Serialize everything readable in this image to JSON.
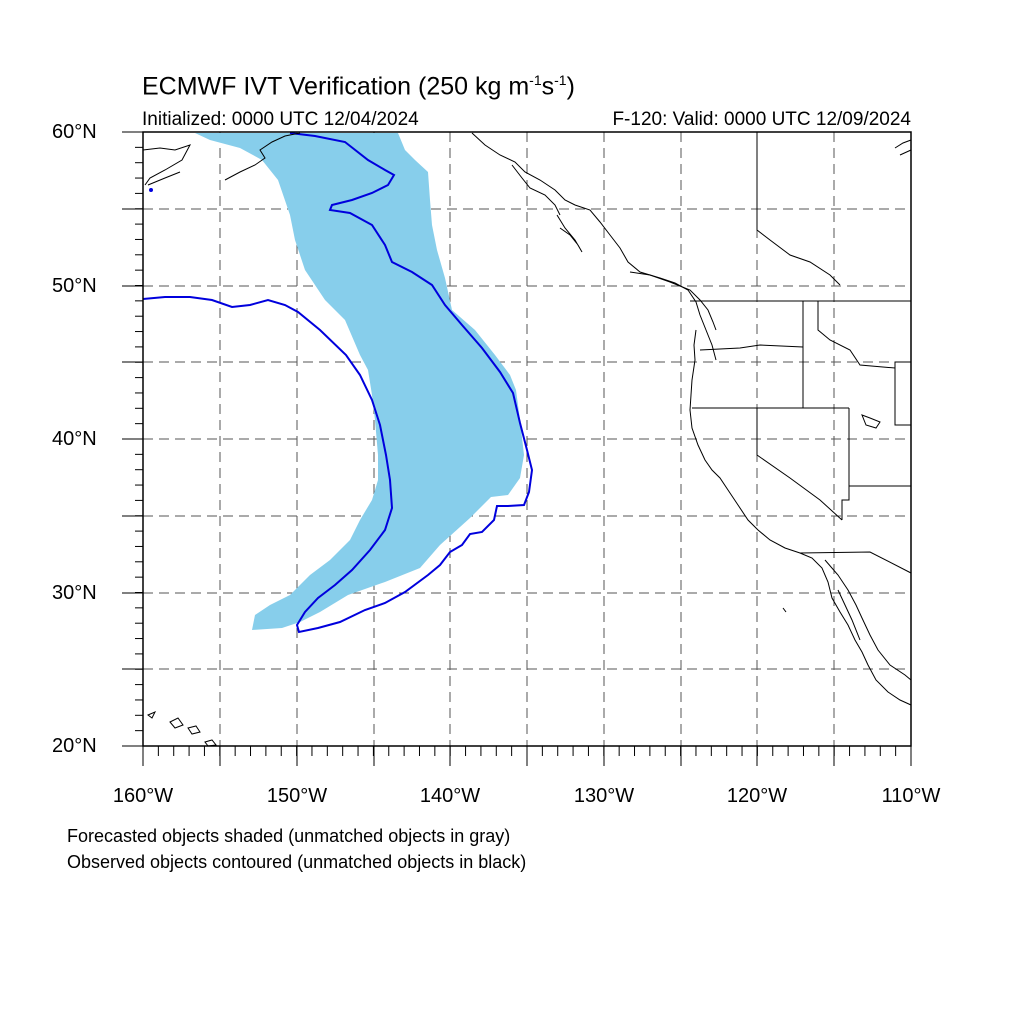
{
  "header": {
    "title_main": "ECMWF IVT Verification (250 kg m",
    "title_exp1": "-1",
    "title_mid": "s",
    "title_exp2": "-1",
    "title_end": ")",
    "initialized": "Initialized: 0000 UTC 12/04/2024",
    "valid": "F-120: Valid: 0000 UTC 12/09/2024"
  },
  "axes": {
    "lat_labels": [
      "60°N",
      "50°N",
      "40°N",
      "30°N",
      "20°N"
    ],
    "lon_labels": [
      "160°W",
      "150°W",
      "140°W",
      "130°W",
      "120°W",
      "110°W"
    ]
  },
  "legend": {
    "line1": "Forecasted objects shaded (unmatched objects in gray)",
    "line2": "Observed objects contoured (unmatched objects in black)"
  },
  "colors": {
    "forecast_fill": "#87ceeb",
    "observed_contour": "#0000dd",
    "coastline": "#000000",
    "grid": "#555555"
  }
}
